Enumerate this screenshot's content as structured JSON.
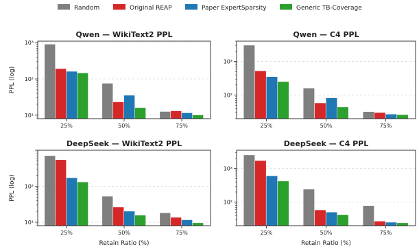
{
  "legend": {
    "entries": [
      {
        "label": "Random",
        "color": "#7f7f7f"
      },
      {
        "label": "Original REAP",
        "color": "#d62728"
      },
      {
        "label": "Paper ExpertSparsity",
        "color": "#1f77b4"
      },
      {
        "label": "Generic TB-Coverage",
        "color": "#2ca02c"
      }
    ],
    "placement": "top-center"
  },
  "chart_data": [
    {
      "type": "bar",
      "title": "Qwen — WikiText2 PPL",
      "xlabel": "",
      "ylabel": "PPL (log)",
      "yscale": "log",
      "ylim": [
        8,
        1100
      ],
      "ytick_labels": [
        "10¹",
        "10²",
        "10³"
      ],
      "categories": [
        "25%",
        "50%",
        "75%"
      ],
      "grid": "y-dashed",
      "series": [
        {
          "name": "Random",
          "values": [
            900,
            75,
            12.5
          ]
        },
        {
          "name": "Original REAP",
          "values": [
            190,
            23,
            13
          ]
        },
        {
          "name": "Paper ExpertSparsity",
          "values": [
            160,
            35,
            11.5
          ]
        },
        {
          "name": "Generic TB-Coverage",
          "values": [
            145,
            16,
            10
          ]
        }
      ]
    },
    {
      "type": "bar",
      "title": "Qwen — C4 PPL",
      "xlabel": "",
      "ylabel": "",
      "yscale": "log",
      "ylim": [
        20,
        4000
      ],
      "ytick_labels": [
        "10²",
        "10³"
      ],
      "categories": [
        "25%",
        "50%",
        "75%"
      ],
      "grid": "y-dashed",
      "series": [
        {
          "name": "Random",
          "values": [
            3000,
            160,
            32
          ]
        },
        {
          "name": "Original REAP",
          "values": [
            520,
            58,
            30
          ]
        },
        {
          "name": "Paper ExpertSparsity",
          "values": [
            350,
            82,
            27
          ]
        },
        {
          "name": "Generic TB-Coverage",
          "values": [
            250,
            44,
            26
          ]
        }
      ]
    },
    {
      "type": "bar",
      "title": "DeepSeek — WikiText2 PPL",
      "xlabel": "Retain Ratio (%)",
      "ylabel": "PPL (log)",
      "yscale": "log",
      "ylim": [
        8,
        1000
      ],
      "ytick_labels": [
        "10¹",
        "10²"
      ],
      "categories": [
        "25%",
        "50%",
        "75%"
      ],
      "grid": "y-dashed",
      "series": [
        {
          "name": "Random",
          "values": [
            700,
            52,
            18
          ]
        },
        {
          "name": "Original REAP",
          "values": [
            540,
            26,
            13.5
          ]
        },
        {
          "name": "Paper ExpertSparsity",
          "values": [
            170,
            20,
            11.5
          ]
        },
        {
          "name": "Generic TB-Coverage",
          "values": [
            130,
            15.5,
            9.5
          ]
        }
      ]
    },
    {
      "type": "bar",
      "title": "DeepSeek — C4 PPL",
      "xlabel": "Retain Ratio (%)",
      "ylabel": "",
      "yscale": "log",
      "ylim": [
        20,
        3500
      ],
      "ytick_labels": [
        "10²",
        "10³"
      ],
      "categories": [
        "25%",
        "50%",
        "75%"
      ],
      "grid": "y-dashed",
      "series": [
        {
          "name": "Random",
          "values": [
            2500,
            240,
            78
          ]
        },
        {
          "name": "Original REAP",
          "values": [
            1700,
            58,
            27
          ]
        },
        {
          "name": "Paper ExpertSparsity",
          "values": [
            600,
            50,
            25
          ]
        },
        {
          "name": "Generic TB-Coverage",
          "values": [
            420,
            42,
            24
          ]
        }
      ]
    }
  ]
}
